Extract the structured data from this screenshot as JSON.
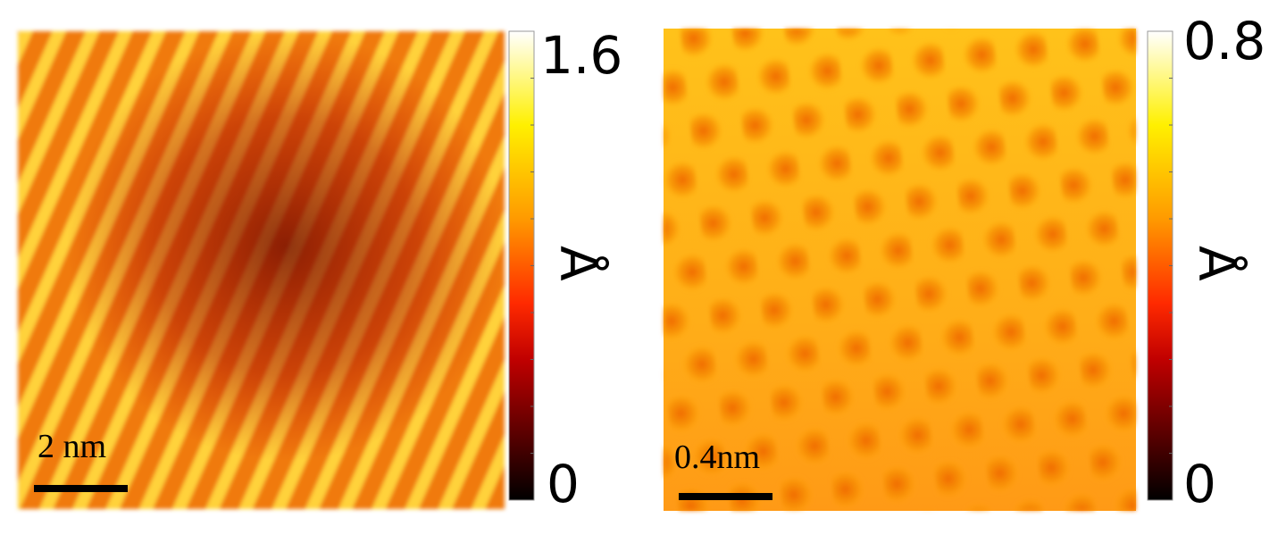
{
  "panels": [
    {
      "scale_bar": "2 nm",
      "colorbar": {
        "max": "1.6",
        "min": "0",
        "unit": "Å"
      }
    },
    {
      "scale_bar": "0.4nm",
      "colorbar": {
        "max": "0.8",
        "min": "0",
        "unit": "Å"
      }
    }
  ]
}
